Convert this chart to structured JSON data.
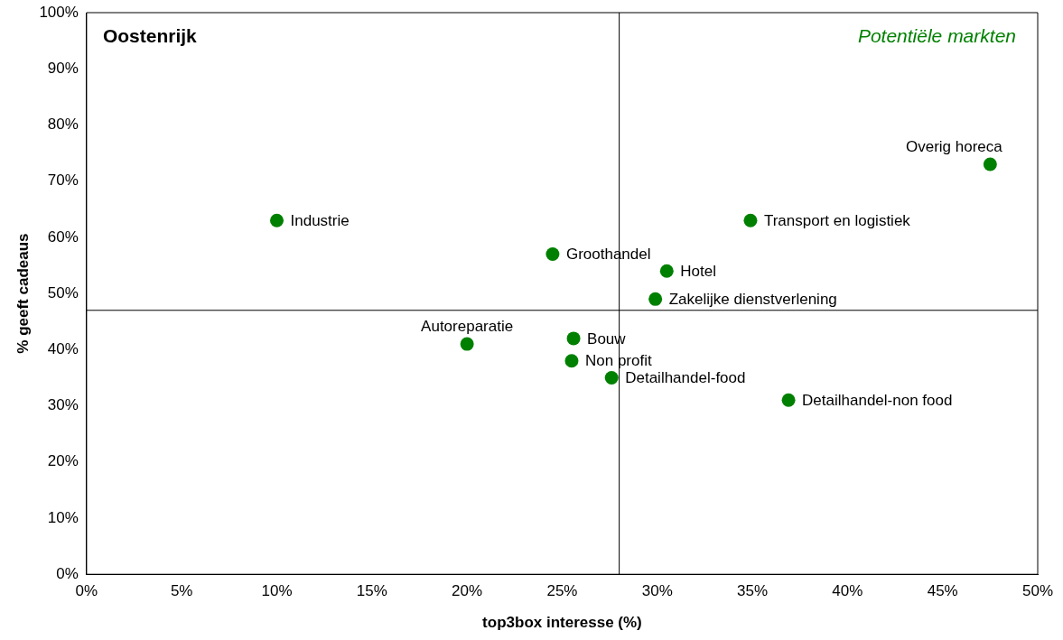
{
  "chart_data": {
    "type": "scatter",
    "xlabel": "top3box interesse (%)",
    "ylabel": "% geeft cadeaus",
    "x": [
      10,
      20,
      24.5,
      25.6,
      25.5,
      27.6,
      29.9,
      30.5,
      34.9,
      36.9,
      47.5
    ],
    "series": [
      {
        "color": "#008000",
        "values": [
          63,
          41,
          57,
          42,
          38,
          35,
          49,
          54,
          63,
          31,
          73
        ]
      }
    ],
    "marker": "circle",
    "legend": false,
    "grid": false,
    "xlim": [
      0,
      50
    ],
    "xticks": [
      {
        "value": 0,
        "label": "0%"
      },
      {
        "value": 5,
        "label": "5%"
      },
      {
        "value": 10,
        "label": "10%"
      },
      {
        "value": 15,
        "label": "15%"
      },
      {
        "value": 20,
        "label": "20%"
      },
      {
        "value": 25,
        "label": "25%"
      },
      {
        "value": 30,
        "label": "30%"
      },
      {
        "value": 35,
        "label": "35%"
      },
      {
        "value": 40,
        "label": "40%"
      },
      {
        "value": 45,
        "label": "45%"
      },
      {
        "value": 50,
        "label": "50%"
      }
    ],
    "ylim": [
      0,
      100
    ],
    "yticks": [
      {
        "value": 0,
        "label": "0%"
      },
      {
        "value": 10,
        "label": "10%"
      },
      {
        "value": 20,
        "label": "20%"
      },
      {
        "value": 30,
        "label": "30%"
      },
      {
        "value": 40,
        "label": "40%"
      },
      {
        "value": 50,
        "label": "50%"
      },
      {
        "value": 60,
        "label": "60%"
      },
      {
        "value": 70,
        "label": "70%"
      },
      {
        "value": 80,
        "label": "80%"
      },
      {
        "value": 90,
        "label": "90%"
      },
      {
        "value": 100,
        "label": "100%"
      }
    ],
    "ref_lines": [
      {
        "axis": "x",
        "value": 28,
        "color": "#000000"
      },
      {
        "axis": "y",
        "value": 47,
        "color": "#000000"
      }
    ],
    "annotations": [
      "Oostenrijk",
      "Potentiële markten",
      {
        "text": "Industrie",
        "x": 10,
        "y": 63
      },
      {
        "text": "Autoreparatie",
        "x": 20,
        "y": 41
      },
      {
        "text": "Groothandel",
        "x": 24.5,
        "y": 57
      },
      {
        "text": "Bouw",
        "x": 25.6,
        "y": 42
      },
      {
        "text": "Non profit",
        "x": 25.5,
        "y": 38
      },
      {
        "text": "Detailhandel-food",
        "x": 27.6,
        "y": 35
      },
      {
        "text": "Zakelijke dienstverlening",
        "x": 29.9,
        "y": 49
      },
      {
        "text": "Hotel",
        "x": 30.5,
        "y": 54
      },
      {
        "text": "Transport en logistiek",
        "x": 34.9,
        "y": 63
      },
      {
        "text": "Detailhandel-non food",
        "x": 36.9,
        "y": 31
      },
      {
        "text": "Overig horeca",
        "x": 47.5,
        "y": 73
      }
    ]
  }
}
